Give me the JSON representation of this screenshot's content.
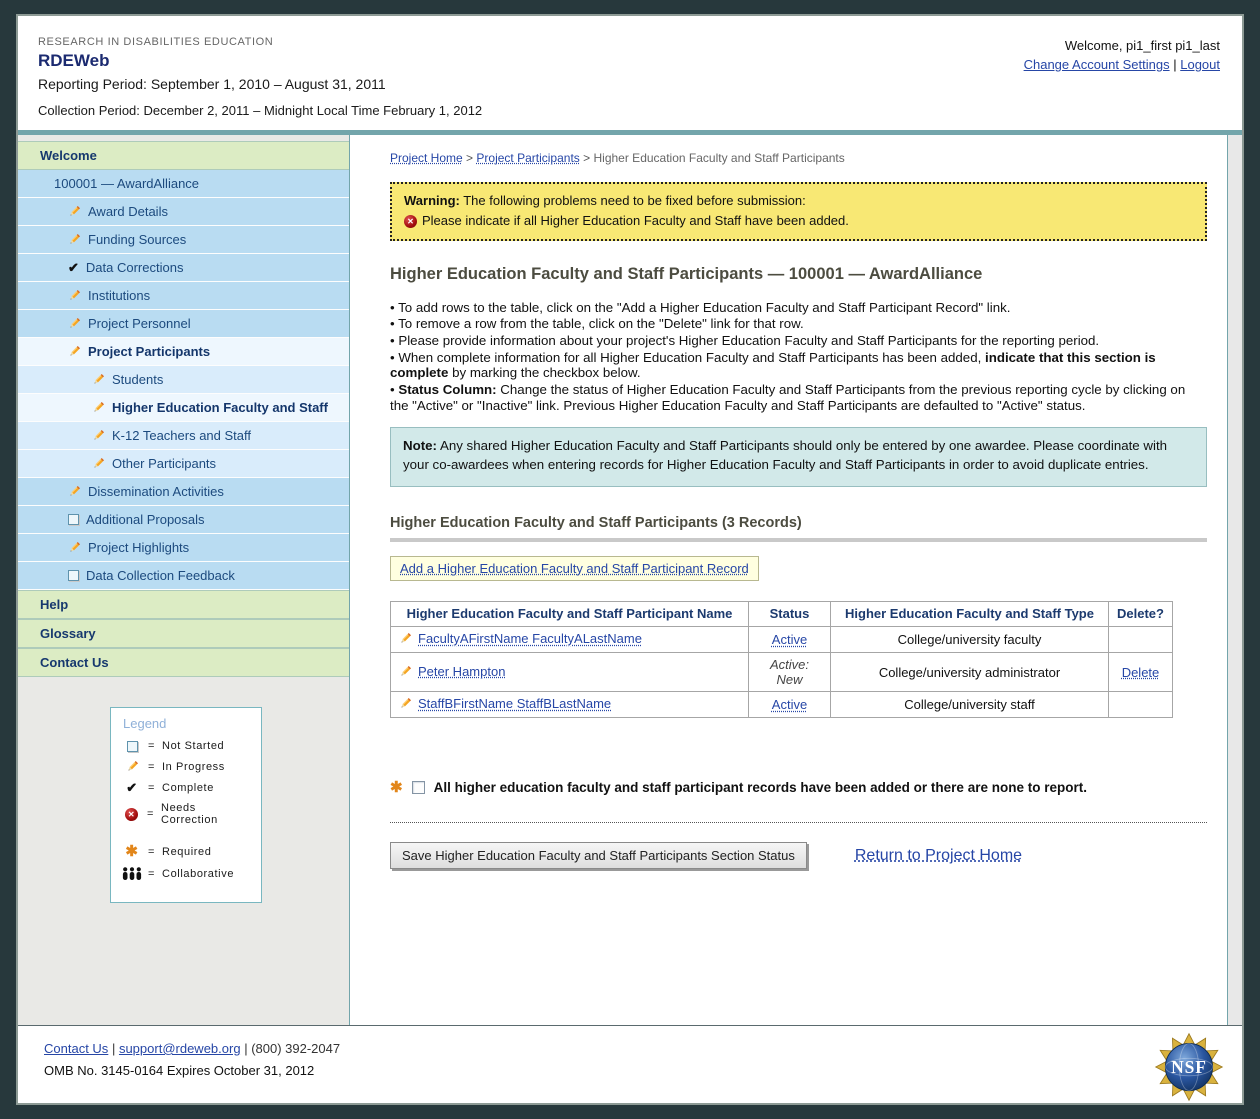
{
  "header": {
    "eyebrow": "RESEARCH IN DISABILITIES EDUCATION",
    "app_title": "RDEWeb",
    "reporting_period": "Reporting Period: September 1, 2010 – August 31, 2011",
    "collection_period": "Collection Period: December 2, 2011 – Midnight Local Time February 1, 2012",
    "welcome": "Welcome, pi1_first pi1_last",
    "account_settings": "Change Account Settings",
    "separator": "|",
    "logout": "Logout"
  },
  "sidebar": {
    "items": [
      {
        "label": "Welcome",
        "type": "header"
      },
      {
        "label": "100001 — AwardAlliance",
        "type": "item",
        "level": 1,
        "icon": "none"
      },
      {
        "label": "Award Details",
        "type": "item",
        "level": 2,
        "icon": "pencil"
      },
      {
        "label": "Funding Sources",
        "type": "item",
        "level": 2,
        "icon": "pencil"
      },
      {
        "label": "Data Corrections",
        "type": "item",
        "level": 2,
        "icon": "check"
      },
      {
        "label": "Institutions",
        "type": "item",
        "level": 2,
        "icon": "pencil"
      },
      {
        "label": "Project Personnel",
        "type": "item",
        "level": 2,
        "icon": "pencil"
      },
      {
        "label": "Project Participants",
        "type": "item",
        "level": 2,
        "icon": "pencil",
        "bold": true,
        "shade": "active"
      },
      {
        "label": "Students",
        "type": "item",
        "level": 3,
        "icon": "pencil",
        "shade": "open"
      },
      {
        "label": "Higher Education Faculty and Staff",
        "type": "item",
        "level": 3,
        "icon": "pencil",
        "bold": true,
        "shade": "active"
      },
      {
        "label": "K-12 Teachers and Staff",
        "type": "item",
        "level": 3,
        "icon": "pencil",
        "shade": "open"
      },
      {
        "label": "Other Participants",
        "type": "item",
        "level": 3,
        "icon": "pencil",
        "shade": "open"
      },
      {
        "label": "Dissemination Activities",
        "type": "item",
        "level": 2,
        "icon": "pencil"
      },
      {
        "label": "Additional Proposals",
        "type": "item",
        "level": 2,
        "icon": "checkbox"
      },
      {
        "label": "Project Highlights",
        "type": "item",
        "level": 2,
        "icon": "pencil"
      },
      {
        "label": "Data Collection Feedback",
        "type": "item",
        "level": 2,
        "icon": "checkbox"
      },
      {
        "label": "Help",
        "type": "header"
      },
      {
        "label": "Glossary",
        "type": "header"
      },
      {
        "label": "Contact Us",
        "type": "header"
      }
    ],
    "legend": {
      "title": "Legend",
      "rows": [
        {
          "icon": "checkbox",
          "eq": "=",
          "label": "Not Started"
        },
        {
          "icon": "pencil",
          "eq": "=",
          "label": "In Progress"
        },
        {
          "icon": "check",
          "eq": "=",
          "label": "Complete"
        },
        {
          "icon": "error",
          "eq": "=",
          "label": "Needs Correction"
        },
        {
          "icon": "required",
          "eq": "=",
          "label": "Required",
          "gap": true
        },
        {
          "icon": "collaborative",
          "eq": "=",
          "label": "Collaborative"
        }
      ]
    }
  },
  "breadcrumb": {
    "link1": "Project Home",
    "link2": "Project Participants",
    "separator": ">",
    "current": "Higher Education Faculty and Staff Participants"
  },
  "warning": {
    "line1": [
      {
        "text": "Warning:",
        "bold": true
      },
      {
        "text": " The following problems need to be fixed before submission:"
      }
    ],
    "line2": "Please indicate if all Higher Education Faculty and Staff have been added."
  },
  "page": {
    "title": "Higher Education Faculty and Staff Participants — 100001 — AwardAlliance",
    "bullets": [
      [
        {
          "text": "To add rows to the table, click on the \"Add a Higher Education Faculty and Staff Participant Record\" link."
        }
      ],
      [
        {
          "text": "To remove a row from the table, click on the \"Delete\" link for that row."
        }
      ],
      [
        {
          "text": "Please provide information about your project's Higher Education Faculty and Staff Participants for the reporting period."
        }
      ],
      [
        {
          "text": "When complete information for all Higher Education Faculty and Staff Participants has been added, "
        },
        {
          "text": "indicate that this section is complete",
          "bold": true
        },
        {
          "text": " by marking the checkbox below."
        }
      ],
      [
        {
          "text": "Status Column:",
          "bold": true
        },
        {
          "text": " Change the status of Higher Education Faculty and Staff Participants from the previous reporting cycle by clicking on the \"Active\" or \"Inactive\" link. Previous Higher Education Faculty and Staff Participants are defaulted to \"Active\" status."
        }
      ]
    ],
    "note": [
      {
        "text": "Note:",
        "bold": true
      },
      {
        "text": " Any shared Higher Education Faculty and Staff Participants should only be entered by one awardee. Please coordinate with your co-awardees when entering records for Higher Education Faculty and Staff Participants in order to avoid duplicate entries."
      }
    ],
    "records_heading": "Higher Education Faculty and Staff Participants (3 Records)",
    "add_link": "Add a Higher Education Faculty and Staff Participant Record"
  },
  "table": {
    "headers": [
      "Higher Education Faculty and Staff Participant Name",
      "Status",
      "Higher Education Faculty and Staff Type",
      "Delete?"
    ],
    "rows": [
      {
        "name": "FacultyAFirstName FacultyALastName",
        "status": "Active",
        "status_is_link": true,
        "type": "College/university faculty",
        "delete": ""
      },
      {
        "name": "Peter Hampton",
        "status": "Active: New",
        "status_is_link": false,
        "type": "College/university administrator",
        "delete": "Delete"
      },
      {
        "name": "StaffBFirstName StaffBLastName",
        "status": "Active",
        "status_is_link": true,
        "type": "College/university staff",
        "delete": ""
      }
    ]
  },
  "completion": {
    "label": "All higher education faculty and staff participant records have been added or there are none to report.",
    "checked": false
  },
  "actions": {
    "save_button": "Save Higher Education Faculty and Staff Participants Section Status",
    "return_link": "Return to Project Home"
  },
  "footer": {
    "contact_link": "Contact Us",
    "email_link": "support@rdeweb.org",
    "phone": "(800) 392-2047",
    "separator": "|",
    "omb": "OMB No. 3145-0164 Expires October 31, 2012",
    "nsf_text": "NSF"
  },
  "colors": {
    "accent_teal": "#73a5ab",
    "warning_bg": "#f8e874",
    "note_bg": "#d2e9e9",
    "sidebar_green": "#dcecc4",
    "sidebar_blue": "#b9dcf2",
    "link": "#2646a6",
    "outer_bg": "#27383c"
  }
}
